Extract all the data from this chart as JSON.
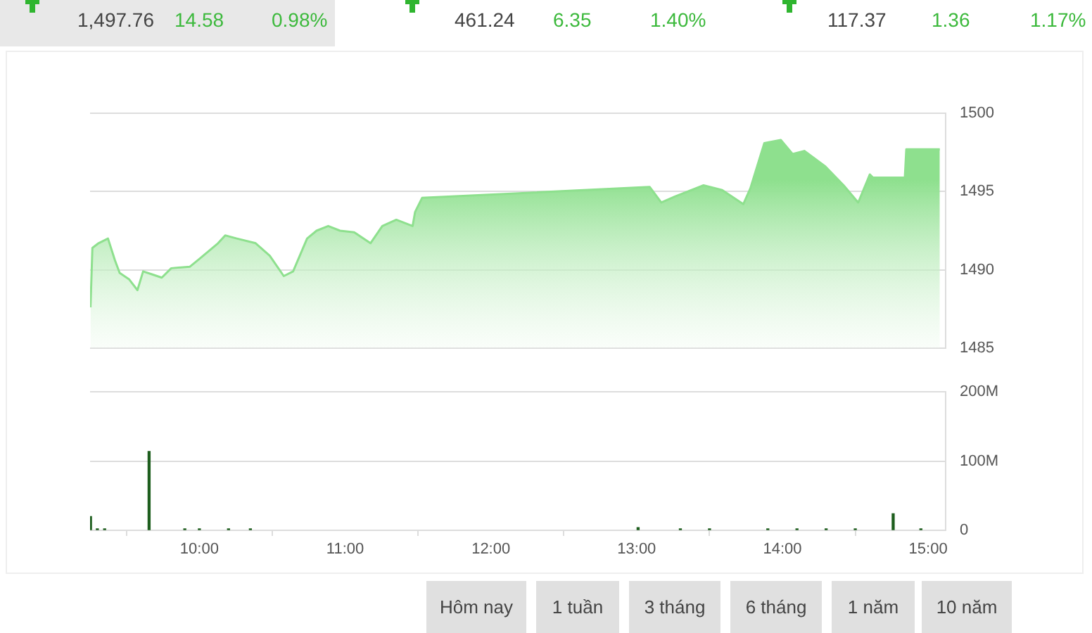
{
  "chart_data": [
    {
      "type": "other",
      "annotations": [
        "1,497.76",
        "14.58",
        "0.98%",
        "461.24",
        "6.35",
        "1.40%",
        "117.37",
        "1.36",
        "1.17%"
      ]
    },
    {
      "type": "area",
      "xlim": [
        9.25,
        15.12
      ],
      "ylim": [
        1485,
        1500
      ],
      "yticks": [
        1485,
        1490,
        1495,
        1500
      ],
      "grid": "y",
      "tick_labels": "y",
      "series": [
        {
          "color": "#8ee08e",
          "x": [
            9.253,
            9.266,
            9.308,
            9.373,
            9.421,
            9.453,
            9.517,
            9.575,
            9.614,
            9.678,
            9.742,
            9.807,
            9.935,
            10.0,
            10.128,
            10.177,
            10.257,
            10.386,
            10.483,
            10.579,
            10.643,
            10.739,
            10.804,
            10.884,
            10.965,
            11.062,
            11.174,
            11.255,
            11.351,
            11.463,
            11.48,
            11.528,
            13.089,
            13.169,
            13.266,
            13.459,
            13.587,
            13.732,
            13.78,
            13.876,
            13.989,
            14.07,
            14.15,
            14.295,
            14.42,
            14.52,
            14.6,
            14.62,
            14.84,
            14.85,
            15.08
          ],
          "values": [
            1487.6,
            1491.4,
            1491.7,
            1492.0,
            1490.6,
            1489.8,
            1489.4,
            1488.7,
            1489.9,
            1489.7,
            1489.5,
            1490.1,
            1490.2,
            1490.7,
            1491.7,
            1492.2,
            1492.0,
            1491.7,
            1490.9,
            1489.6,
            1489.9,
            1492.0,
            1492.5,
            1492.8,
            1492.5,
            1492.4,
            1491.7,
            1492.8,
            1493.2,
            1492.8,
            1493.7,
            1494.6,
            1495.3,
            1494.3,
            1494.7,
            1495.4,
            1495.1,
            1494.2,
            1495.2,
            1498.1,
            1498.3,
            1497.4,
            1497.6,
            1496.6,
            1495.4,
            1494.3,
            1496.1,
            1495.9,
            1495.9,
            1497.7,
            1497.7
          ]
        }
      ]
    },
    {
      "type": "bar",
      "xlim": [
        9.25,
        15.12
      ],
      "xticks": [
        {
          "value": 10,
          "label": "10:00"
        },
        {
          "value": 11,
          "label": "11:00"
        },
        {
          "value": 12,
          "label": "12:00"
        },
        {
          "value": 13,
          "label": "13:00"
        },
        {
          "value": 14,
          "label": "14:00"
        },
        {
          "value": 15,
          "label": "15:00"
        }
      ],
      "ylim": [
        0,
        200
      ],
      "yticks": [
        0,
        {
          "value": 100,
          "label": "100M"
        },
        {
          "value": 200,
          "label": "200M"
        }
      ],
      "grid": "y",
      "series": [
        {
          "color": "#1e5e1e",
          "x": [
            9.253,
            9.3,
            9.35,
            9.655,
            9.9,
            10.0,
            10.2,
            10.35,
            13.01,
            13.3,
            13.5,
            13.9,
            14.1,
            14.3,
            14.5,
            14.76,
            14.95
          ],
          "values": [
            20,
            2,
            2,
            114,
            2,
            2,
            2,
            2,
            4,
            2,
            2,
            2,
            2,
            2,
            2,
            24,
            2
          ]
        }
      ]
    },
    {
      "type": "other",
      "annotations": [
        "Hôm nay",
        "1 tuần",
        "3 tháng",
        "6 tháng",
        "1 năm",
        "10 năm"
      ]
    }
  ]
}
